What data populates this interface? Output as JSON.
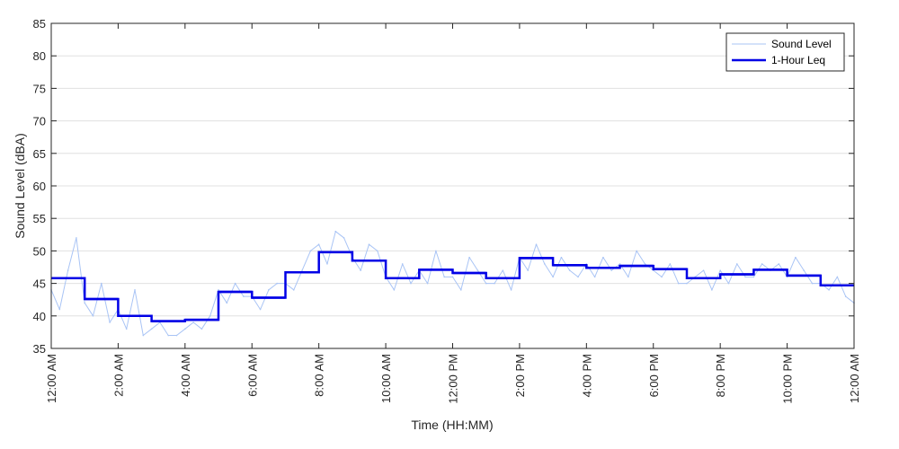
{
  "chart_data": {
    "type": "line",
    "title": "",
    "xlabel": "Time (HH:MM)",
    "ylabel": "Sound Level (dBA)",
    "ylim": [
      35,
      85
    ],
    "xlim_hours": [
      0,
      24
    ],
    "y_ticks": [
      35,
      40,
      45,
      50,
      55,
      60,
      65,
      70,
      75,
      80,
      85
    ],
    "x_ticks": [
      {
        "hour": 0,
        "label": "12:00 AM"
      },
      {
        "hour": 2,
        "label": "2:00 AM"
      },
      {
        "hour": 4,
        "label": "4:00 AM"
      },
      {
        "hour": 6,
        "label": "6:00 AM"
      },
      {
        "hour": 8,
        "label": "8:00 AM"
      },
      {
        "hour": 10,
        "label": "10:00 AM"
      },
      {
        "hour": 12,
        "label": "12:00 PM"
      },
      {
        "hour": 14,
        "label": "2:00 PM"
      },
      {
        "hour": 16,
        "label": "4:00 PM"
      },
      {
        "hour": 18,
        "label": "6:00 PM"
      },
      {
        "hour": 20,
        "label": "8:00 PM"
      },
      {
        "hour": 22,
        "label": "10:00 PM"
      },
      {
        "hour": 24,
        "label": "12:00 AM"
      }
    ],
    "grid": "horizontal",
    "legend": {
      "position": "top-right",
      "entries": [
        "Sound Level",
        "1-Hour Leq"
      ]
    },
    "series": [
      {
        "name": "Sound Level",
        "color": "#a9c4f5",
        "style": "thin-line",
        "x_hours": [
          0.0,
          0.25,
          0.5,
          0.75,
          1.0,
          1.25,
          1.5,
          1.75,
          2.0,
          2.25,
          2.5,
          2.75,
          3.0,
          3.25,
          3.5,
          3.75,
          4.0,
          4.25,
          4.5,
          4.75,
          5.0,
          5.25,
          5.5,
          5.75,
          6.0,
          6.25,
          6.5,
          6.75,
          7.0,
          7.25,
          7.5,
          7.75,
          8.0,
          8.25,
          8.5,
          8.75,
          9.0,
          9.25,
          9.5,
          9.75,
          10.0,
          10.25,
          10.5,
          10.75,
          11.0,
          11.25,
          11.5,
          11.75,
          12.0,
          12.25,
          12.5,
          12.75,
          13.0,
          13.25,
          13.5,
          13.75,
          14.0,
          14.25,
          14.5,
          14.75,
          15.0,
          15.25,
          15.5,
          15.75,
          16.0,
          16.25,
          16.5,
          16.75,
          17.0,
          17.25,
          17.5,
          17.75,
          18.0,
          18.25,
          18.5,
          18.75,
          19.0,
          19.25,
          19.5,
          19.75,
          20.0,
          20.25,
          20.5,
          20.75,
          21.0,
          21.25,
          21.5,
          21.75,
          22.0,
          22.25,
          22.5,
          22.75,
          23.0,
          23.25,
          23.5,
          23.75,
          24.0
        ],
        "values": [
          44,
          41,
          47,
          52,
          42,
          40,
          45,
          39,
          41,
          38,
          44,
          37,
          38,
          39,
          37,
          37,
          38,
          39,
          38,
          40,
          44,
          42,
          45,
          43,
          43,
          41,
          44,
          45,
          45,
          44,
          47,
          50,
          51,
          48,
          53,
          52,
          49,
          47,
          51,
          50,
          46,
          44,
          48,
          45,
          47,
          45,
          50,
          46,
          46,
          44,
          49,
          47,
          45,
          45,
          47,
          44,
          49,
          47,
          51,
          48,
          46,
          49,
          47,
          46,
          48,
          46,
          49,
          47,
          48,
          46,
          50,
          48,
          47,
          46,
          48,
          45,
          45,
          46,
          47,
          44,
          47,
          45,
          48,
          46,
          46,
          48,
          47,
          48,
          46,
          49,
          47,
          45,
          45,
          44,
          46,
          43,
          42
        ]
      },
      {
        "name": "1-Hour Leq",
        "color": "#0000e6",
        "style": "step",
        "x_hours": [
          0,
          1,
          2,
          3,
          4,
          5,
          6,
          7,
          8,
          9,
          10,
          11,
          12,
          13,
          14,
          15,
          16,
          17,
          18,
          19,
          20,
          21,
          22,
          23
        ],
        "values": [
          45.8,
          42.6,
          40.0,
          39.2,
          39.4,
          43.7,
          42.8,
          46.7,
          49.8,
          48.5,
          45.8,
          47.1,
          46.6,
          45.8,
          48.9,
          47.8,
          47.4,
          47.7,
          47.2,
          45.8,
          46.4,
          47.1,
          46.2,
          44.7
        ]
      }
    ]
  }
}
